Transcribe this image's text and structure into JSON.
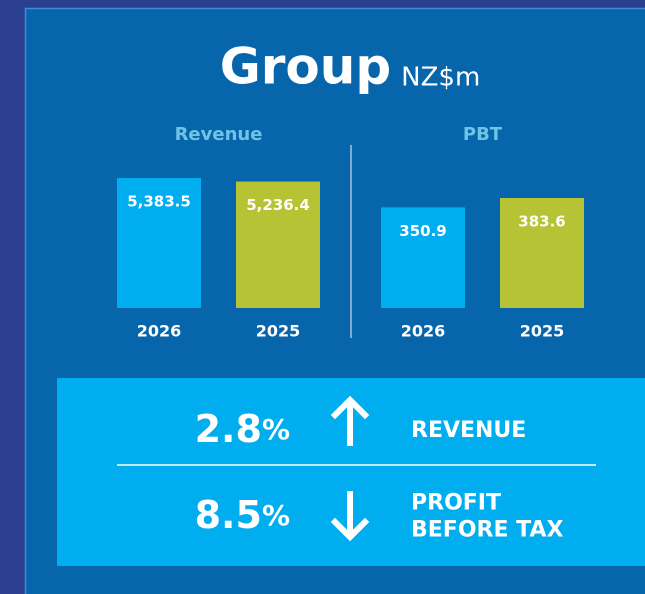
{
  "header": {
    "title": "Group",
    "unit": "NZ$m"
  },
  "chart_data": [
    {
      "type": "bar",
      "title": "Revenue",
      "categories": [
        "2026",
        "2025"
      ],
      "values": [
        5383.5,
        5236.4
      ],
      "value_labels": [
        "5,383.5",
        "5,236.4"
      ],
      "colors": [
        "#00aeef",
        "#b5c334"
      ]
    },
    {
      "type": "bar",
      "title": "PBT",
      "categories": [
        "2026",
        "2025"
      ],
      "values": [
        350.9,
        383.6
      ],
      "value_labels": [
        "350.9",
        "383.6"
      ],
      "colors": [
        "#00aeef",
        "#b5c334"
      ]
    }
  ],
  "summary": [
    {
      "value": "2.8",
      "unit": "%",
      "direction": "up",
      "label_lines": [
        "REVENUE"
      ]
    },
    {
      "value": "8.5",
      "unit": "%",
      "direction": "down",
      "label_lines": [
        "PROFIT",
        "BEFORE TAX"
      ]
    }
  ]
}
